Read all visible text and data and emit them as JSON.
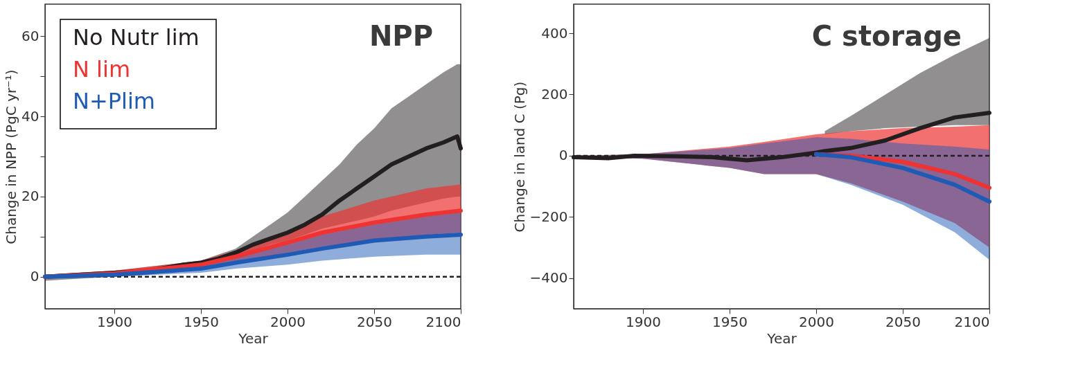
{
  "chart_data": [
    {
      "type": "line",
      "title": "NPP",
      "xlabel": "Year",
      "ylabel": "Change in NPP (PgC yr⁻¹)",
      "xlim": [
        1860,
        2100
      ],
      "ylim": [
        -8,
        68
      ],
      "xticks": [
        1900,
        1950,
        2000,
        2050,
        2100
      ],
      "yticks": [
        0,
        {
          "value": 10,
          "label": null
        },
        20,
        {
          "value": 30,
          "label": null
        },
        40,
        {
          "value": 50,
          "label": null
        },
        60
      ],
      "grid": false,
      "legend": "top left",
      "line_style": "solid",
      "marker": "none",
      "ref_lines": [
        {
          "axis": "y",
          "value": 0,
          "color": "#231f20",
          "line_style": "dashed"
        }
      ],
      "series": [
        {
          "name": "No Nutr lim",
          "color": "#231f20",
          "x": [
            1860,
            1880,
            1900,
            1920,
            1940,
            1950,
            1960,
            1970,
            1980,
            1990,
            2000,
            2010,
            2020,
            2030,
            2040,
            2050,
            2060,
            2070,
            2080,
            2090,
            2098,
            2100
          ],
          "values": [
            0,
            0.5,
            1,
            1.5,
            3,
            3.5,
            4.5,
            6,
            8,
            9.5,
            11,
            13,
            15.5,
            19,
            22,
            25,
            28,
            30,
            32,
            33.5,
            35,
            32
          ],
          "lower": [
            -1,
            -0.5,
            0,
            0.5,
            1.5,
            2.5,
            3.5,
            5,
            6.5,
            8,
            9,
            10.5,
            12,
            13,
            14,
            15,
            16.5,
            17.5,
            18.5,
            19.5,
            20,
            20
          ],
          "upper": [
            0.5,
            1,
            1.5,
            2.5,
            3.5,
            4,
            5.5,
            7,
            10,
            13,
            16,
            20,
            24,
            28,
            33,
            37,
            42,
            45,
            48,
            51,
            53,
            53
          ]
        },
        {
          "name": "N lim",
          "color": "#ee3333",
          "x": [
            1860,
            1900,
            1950,
            1970,
            2000,
            2020,
            2050,
            2080,
            2100
          ],
          "values": [
            0,
            0.8,
            3,
            5,
            8.5,
            11,
            13.5,
            15.5,
            16.5
          ],
          "lower": [
            -0.5,
            0,
            2,
            3.5,
            6,
            7.5,
            9,
            10.5,
            11
          ],
          "upper": [
            0.5,
            1.5,
            4,
            6.5,
            11,
            15,
            19,
            22,
            23
          ]
        },
        {
          "name": "N+Plim",
          "color": "#1f5bb5",
          "x": [
            1860,
            1900,
            1950,
            1970,
            2000,
            2020,
            2050,
            2080,
            2100
          ],
          "values": [
            0,
            0.5,
            2,
            3.5,
            5.5,
            7,
            9,
            10,
            10.5
          ],
          "lower": [
            -0.5,
            0,
            1,
            2,
            3,
            4,
            5,
            5.5,
            5.5
          ],
          "upper": [
            0.3,
            1,
            3,
            5,
            8,
            10.5,
            13,
            15,
            16
          ]
        }
      ]
    },
    {
      "type": "line",
      "title": "C storage",
      "xlabel": "Year",
      "ylabel": "Change in land C (Pg)",
      "xlim": [
        1860,
        2100
      ],
      "ylim": [
        -500,
        495
      ],
      "xticks": [
        1900,
        1950,
        2000,
        2050,
        2100
      ],
      "yticks": [
        -400,
        -200,
        0,
        200,
        400
      ],
      "grid": false,
      "line_style": "solid",
      "marker": "none",
      "ref_lines": [
        {
          "axis": "y",
          "value": 0,
          "color": "#231f20",
          "line_style": "dashed"
        }
      ],
      "series": [
        {
          "color": "#231f20",
          "x": [
            1860,
            1880,
            1895,
            1920,
            1940,
            1960,
            1980,
            2000,
            2005,
            2020,
            2040,
            2060,
            2080,
            2100
          ],
          "values": [
            -5,
            -8,
            0,
            -2,
            -5,
            -15,
            -5,
            10,
            15,
            25,
            50,
            90,
            125,
            140
          ],
          "lower": [
            null,
            null,
            null,
            null,
            null,
            null,
            null,
            null,
            70,
            80,
            90,
            95,
            100,
            100
          ],
          "upper": [
            null,
            null,
            null,
            null,
            null,
            null,
            null,
            null,
            80,
            130,
            200,
            270,
            330,
            385
          ]
        },
        {
          "color": "#ee3333",
          "x": [
            1860,
            1900,
            1950,
            1970,
            2000,
            2020,
            2050,
            2080,
            2100
          ],
          "values": [
            null,
            null,
            null,
            null,
            5,
            0,
            -20,
            -60,
            -105
          ],
          "lower": [
            -5,
            -10,
            -40,
            -60,
            -60,
            -90,
            -150,
            -220,
            -300
          ],
          "upper": [
            0,
            5,
            30,
            45,
            70,
            80,
            90,
            95,
            100
          ]
        },
        {
          "color": "#1f5bb5",
          "x": [
            1860,
            1900,
            1950,
            1970,
            2000,
            2020,
            2050,
            2080,
            2100
          ],
          "values": [
            null,
            null,
            null,
            null,
            5,
            -5,
            -40,
            -95,
            -150
          ],
          "lower": [
            -5,
            -10,
            -40,
            -60,
            -60,
            -95,
            -160,
            -250,
            -340
          ],
          "upper": [
            0,
            5,
            25,
            40,
            60,
            55,
            40,
            30,
            20
          ]
        }
      ]
    }
  ]
}
